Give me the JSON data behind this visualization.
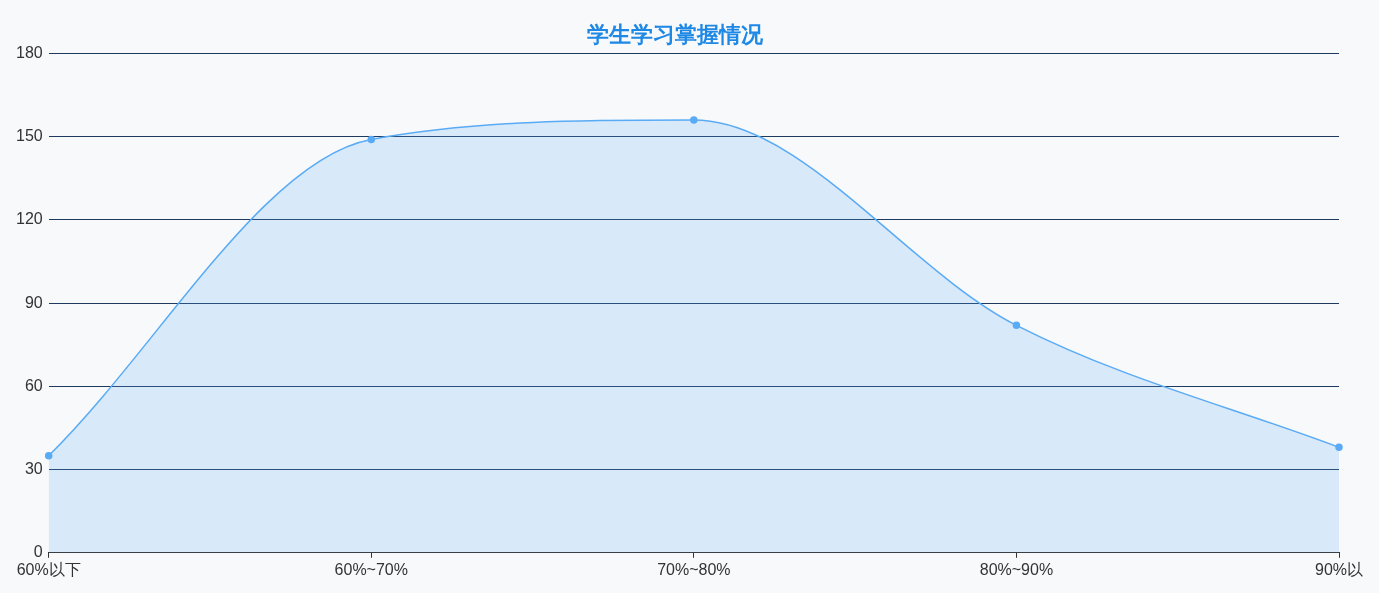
{
  "chart_data": {
    "type": "area",
    "title": "学生学习掌握情况",
    "categories": [
      "60%以下",
      "60%~70%",
      "70%~80%",
      "80%~90%",
      "90%以"
    ],
    "series": [
      {
        "color": "#5aabf5",
        "values": [
          35,
          149,
          156,
          82,
          38
        ]
      }
    ],
    "ylim": [
      0,
      180
    ],
    "yticks": [
      0,
      30,
      60,
      90,
      120,
      150,
      180
    ],
    "grid": "y",
    "legend": false,
    "marker": "circle",
    "line_style": "solid"
  }
}
